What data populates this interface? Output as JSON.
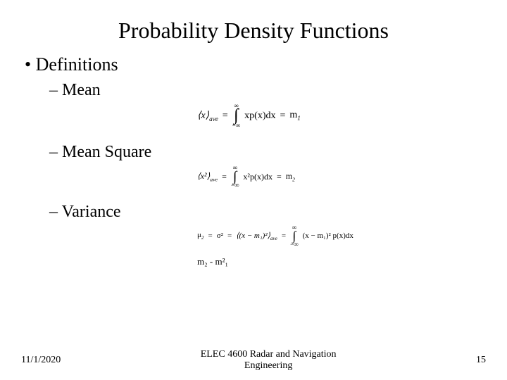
{
  "title": "Probability Density Functions",
  "definitions_label": "Definitions",
  "items": {
    "mean": {
      "label": "Mean",
      "lhs": "⟨x⟩",
      "lhs_sub": "ave",
      "integrand": "xp(x)dx",
      "rhs": "m",
      "rhs_sub": "1",
      "upper": "∞",
      "lower": "−∞"
    },
    "mean_square": {
      "label": "Mean Square",
      "lhs": "⟨x²⟩",
      "lhs_sub": "ave",
      "integrand": "x²p(x)dx",
      "rhs": "m",
      "rhs_sub": "2",
      "upper": "∞",
      "lower": "−∞"
    },
    "variance": {
      "label": "Variance",
      "mu": "μ",
      "mu_sub": "2",
      "sigma": "σ²",
      "mid_lhs": "⟨(x − m₁)²⟩",
      "mid_sub": "ave",
      "integrand": "(x − m₁)² p(x)dx",
      "upper": "∞",
      "lower": "−∞",
      "extra": "m₂ - m²₁"
    }
  },
  "footer": {
    "date": "11/1/2020",
    "course_line1": "ELEC 4600 Radar and Navigation",
    "course_line2": "Engineering",
    "page": "15"
  }
}
